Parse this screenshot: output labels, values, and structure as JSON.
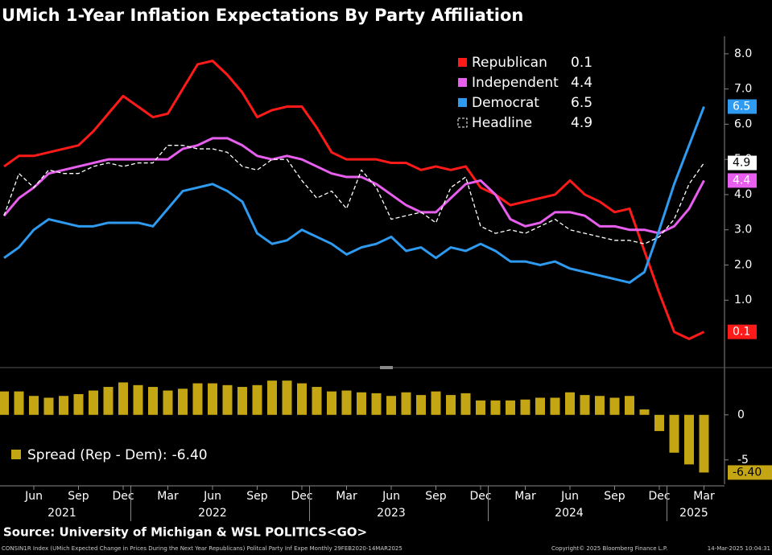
{
  "chart_data": {
    "type": "line",
    "title": "UMich 1-Year Inflation Expectations By Party Affiliation",
    "source": "Source: University of Michigan & WSL POLITICS<GO>",
    "footer_left": "CONSIN1R Index (UMich Expected Change in Prices During the Next Year Republicans) Politcal Party Inf Expe  Monthly 29FEB2020-14MAR2025",
    "footer_mid": "Copyright© 2025 Bloomberg Finance L.P.",
    "footer_right": "14-Mar-2025 10:04:31",
    "categories": [
      null,
      null,
      "Jun",
      null,
      null,
      "Sep",
      null,
      null,
      "Dec",
      null,
      null,
      "Mar",
      null,
      null,
      "Jun",
      null,
      null,
      "Sep",
      null,
      null,
      "Dec",
      null,
      null,
      "Mar",
      null,
      null,
      "Jun",
      null,
      null,
      "Sep",
      null,
      null,
      "Dec",
      null,
      null,
      "Mar",
      null,
      null,
      "Jun",
      null,
      null,
      "Sep",
      null,
      null,
      "Dec",
      null,
      null,
      "Mar"
    ],
    "years": [
      "2021",
      "2022",
      "2023",
      "2024",
      "2025"
    ],
    "ylim": [
      -0.8,
      8.5
    ],
    "yticks": [
      {
        "value": 1,
        "label": "1.0"
      },
      {
        "value": 2,
        "label": "2.0"
      },
      {
        "value": 3,
        "label": "3.0"
      },
      {
        "value": 4,
        "label": "4.0"
      },
      {
        "value": 5,
        "label": "5.0"
      },
      {
        "value": 6,
        "label": "6.0"
      },
      {
        "value": 7,
        "label": "7.0"
      },
      {
        "value": 8,
        "label": "8.0"
      }
    ],
    "series": [
      {
        "name": "Republican",
        "color": "#ff1a1a",
        "legend_value": "0.1",
        "values": [
          4.8,
          5.1,
          5.1,
          5.2,
          5.3,
          5.4,
          5.8,
          6.3,
          6.8,
          6.5,
          6.2,
          6.3,
          7.0,
          7.7,
          7.8,
          7.4,
          6.9,
          6.2,
          6.4,
          6.5,
          6.5,
          5.9,
          5.2,
          5.0,
          5.0,
          5.0,
          4.9,
          4.9,
          4.7,
          4.8,
          4.7,
          4.8,
          4.2,
          4.0,
          3.7,
          3.8,
          3.9,
          4.0,
          4.4,
          4.0,
          3.8,
          3.5,
          3.6,
          2.4,
          1.2,
          0.1,
          -0.1,
          0.1
        ]
      },
      {
        "name": "Independent",
        "color": "#e85ff0",
        "legend_value": "4.4",
        "values": [
          3.4,
          3.9,
          4.2,
          4.6,
          4.7,
          4.8,
          4.9,
          5.0,
          5.0,
          5.0,
          5.0,
          5.0,
          5.3,
          5.4,
          5.6,
          5.6,
          5.4,
          5.1,
          5.0,
          5.1,
          5.0,
          4.8,
          4.6,
          4.5,
          4.5,
          4.3,
          4.0,
          3.7,
          3.5,
          3.5,
          3.9,
          4.3,
          4.4,
          4.0,
          3.3,
          3.1,
          3.2,
          3.5,
          3.5,
          3.4,
          3.1,
          3.1,
          3.0,
          3.0,
          2.9,
          3.1,
          3.6,
          4.4
        ]
      },
      {
        "name": "Democrat",
        "color": "#2f9bf0",
        "legend_value": "6.5",
        "values": [
          2.2,
          2.5,
          3.0,
          3.3,
          3.2,
          3.1,
          3.1,
          3.2,
          3.2,
          3.2,
          3.1,
          3.6,
          4.1,
          4.2,
          4.3,
          4.1,
          3.8,
          2.9,
          2.6,
          2.7,
          3.0,
          2.8,
          2.6,
          2.3,
          2.5,
          2.6,
          2.8,
          2.4,
          2.5,
          2.2,
          2.5,
          2.4,
          2.6,
          2.4,
          2.1,
          2.1,
          2.0,
          2.1,
          1.9,
          1.8,
          1.7,
          1.6,
          1.5,
          1.8,
          3.0,
          4.3,
          5.4,
          6.5
        ]
      },
      {
        "name": "Headline",
        "color": "#ffffff",
        "dash": true,
        "legend_value": "4.9",
        "values": [
          3.4,
          4.6,
          4.2,
          4.7,
          4.6,
          4.6,
          4.8,
          4.9,
          4.8,
          4.9,
          4.9,
          5.4,
          5.4,
          5.3,
          5.3,
          5.2,
          4.8,
          4.7,
          5.0,
          5.0,
          4.4,
          3.9,
          4.1,
          3.6,
          4.7,
          4.2,
          3.3,
          3.4,
          3.5,
          3.2,
          4.2,
          4.5,
          3.1,
          2.9,
          3.0,
          2.9,
          3.1,
          3.3,
          3.0,
          2.9,
          2.8,
          2.7,
          2.7,
          2.6,
          2.8,
          3.3,
          4.3,
          4.9
        ]
      }
    ],
    "spread": {
      "type": "bar",
      "name": "Spread (Rep - Dem):",
      "color": "#c4a514",
      "ylim": [
        -7.7,
        4.8
      ],
      "yticks": [
        -5,
        0
      ],
      "values": [
        2.6,
        2.6,
        2.1,
        1.9,
        2.1,
        2.3,
        2.7,
        3.1,
        3.6,
        3.3,
        3.1,
        2.7,
        2.9,
        3.5,
        3.5,
        3.3,
        3.1,
        3.3,
        3.8,
        3.8,
        3.5,
        3.1,
        2.6,
        2.7,
        2.5,
        2.4,
        2.1,
        2.5,
        2.2,
        2.6,
        2.2,
        2.4,
        1.6,
        1.6,
        1.6,
        1.7,
        1.9,
        1.9,
        2.5,
        2.2,
        2.1,
        1.9,
        2.1,
        0.6,
        -1.8,
        -4.2,
        -5.5,
        -6.4
      ],
      "last_label": "-6.40"
    }
  }
}
